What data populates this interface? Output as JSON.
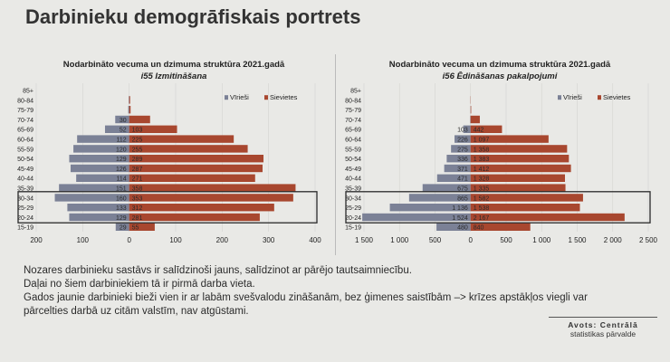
{
  "slide": {
    "title": "Darbinieku demogrāfiskais portrets"
  },
  "colors": {
    "men": "#7b8196",
    "women": "#a8472f",
    "highlight_box": "#2a2a2a"
  },
  "chart_data": [
    {
      "type": "bar",
      "orientation": "population-pyramid",
      "title": "Nodarbināto vecuma un dzimuma struktūra 2021.gadā",
      "subtitle": "i55 Izmitināšana",
      "categories": [
        "85+",
        "80-84",
        "75-79",
        "70-74",
        "65-69",
        "60-64",
        "55-59",
        "50-54",
        "45-49",
        "40-44",
        "35-39",
        "30-34",
        "25-29",
        "20-24",
        "15-19"
      ],
      "series": [
        {
          "name": "Vīrieši",
          "values": [
            0,
            1,
            2,
            30,
            52,
            112,
            120,
            129,
            126,
            114,
            151,
            160,
            133,
            129,
            29
          ],
          "labels": [
            "",
            "",
            "",
            "30",
            "52",
            "112",
            "120",
            "129",
            "126",
            "114",
            "151",
            "160",
            "133",
            "129",
            "29"
          ]
        },
        {
          "name": "Sievietes",
          "values": [
            0,
            2,
            3,
            45,
            103,
            225,
            255,
            289,
            287,
            271,
            358,
            353,
            312,
            281,
            55
          ],
          "labels": [
            "",
            "",
            "",
            "",
            "103",
            "225",
            "255",
            "289",
            "287",
            "271",
            "358",
            "353",
            "312",
            "281",
            "55"
          ]
        }
      ],
      "xticks": [
        "200",
        "100",
        "0",
        "100",
        "200",
        "300",
        "400"
      ],
      "xlim": [
        -200,
        400
      ],
      "legend": "top-right",
      "highlight_rows": [
        "30-34",
        "25-29",
        "20-24"
      ]
    },
    {
      "type": "bar",
      "orientation": "population-pyramid",
      "title": "Nodarbināto vecuma un dzimuma struktūra 2021.gadā",
      "subtitle": "i56 Ēdināšanas pakalpojumi",
      "categories": [
        "85+",
        "80-84",
        "75-79",
        "70-74",
        "65-69",
        "60-64",
        "55-59",
        "50-54",
        "45-49",
        "40-44",
        "35-39",
        "30-34",
        "25-29",
        "20-24",
        "15-19"
      ],
      "series": [
        {
          "name": "Vīrieši",
          "values": [
            0,
            1,
            3,
            6,
            103,
            226,
            275,
            336,
            371,
            471,
            675,
            865,
            1136,
            1524,
            480
          ],
          "labels": [
            "",
            "",
            "",
            "",
            "103",
            "226",
            "275",
            "336",
            "371",
            "471",
            "675",
            "865",
            "1 136",
            "1 524",
            "480"
          ]
        },
        {
          "name": "Sievietes",
          "values": [
            0,
            3,
            8,
            130,
            442,
            1097,
            1358,
            1383,
            1412,
            1328,
            1335,
            1582,
            1538,
            2167,
            840
          ],
          "labels": [
            "",
            "",
            "",
            "",
            "442",
            "1 097",
            "1 358",
            "1 383",
            "1 412",
            "1 328",
            "1 335",
            "1 582",
            "1 538",
            "2 167",
            "840"
          ]
        }
      ],
      "xticks": [
        "1 500",
        "1 000",
        "500",
        "0",
        "500",
        "1 000",
        "1 500",
        "2 000",
        "2 500"
      ],
      "xlim": [
        -1500,
        2500
      ],
      "legend": "top-right",
      "highlight_rows": [
        "30-34",
        "25-29",
        "20-24"
      ]
    }
  ],
  "notes": [
    "Nozares darbinieku sastāvs ir salīdzinoši jauns, salīdzinot ar pārējo tautsaimniecību.",
    "Daļai no šiem darbiniekiem tā ir pirmā darba vieta.",
    "Gados jaunie darbinieki bieži vien ir ar labām svešvalodu zināšanām, bez ģimenes saistībām –> krīzes apstākļos viegli var pārcelties darbā uz citām valstīm, nav atgūstami."
  ],
  "source": {
    "head": "Avots: Centrālā",
    "body": "statistikas pārvalde"
  }
}
